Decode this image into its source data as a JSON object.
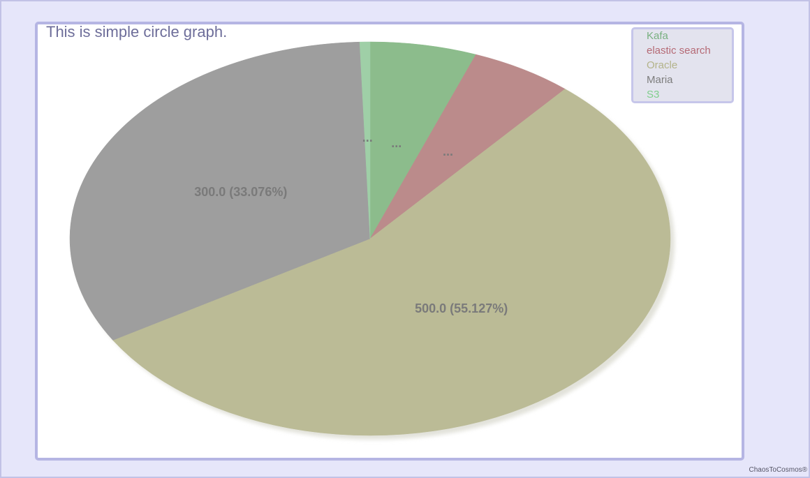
{
  "chart_data": {
    "type": "pie",
    "title": "This is simple circle graph.",
    "series": [
      {
        "name": "Kafa",
        "value": 52,
        "label": "...",
        "color": "#8cbc8c",
        "legend_color": "#78b07f"
      },
      {
        "name": "elastic search",
        "value": 50,
        "label": "...",
        "color": "#bb8b8b",
        "legend_color": "#b56a75"
      },
      {
        "name": "Oracle",
        "value": 500,
        "label": "500.0 (55.127%)",
        "color": "#bbbb96",
        "legend_color": "#b3b389"
      },
      {
        "name": "Maria",
        "value": 300,
        "label": "300.0 (33.076%)",
        "color": "#9e9e9e",
        "legend_color": "#7d7d7d"
      },
      {
        "name": "S3",
        "value": 5.0,
        "label": "...",
        "color": "#9fcfa7",
        "legend_color": "#7fcf8c"
      }
    ],
    "start_angle": "12 o'clock",
    "direction": "clockwise",
    "legend_position": "top-right",
    "label_color": "#7a7a7a"
  },
  "credit": "ChaosToCosmos®"
}
